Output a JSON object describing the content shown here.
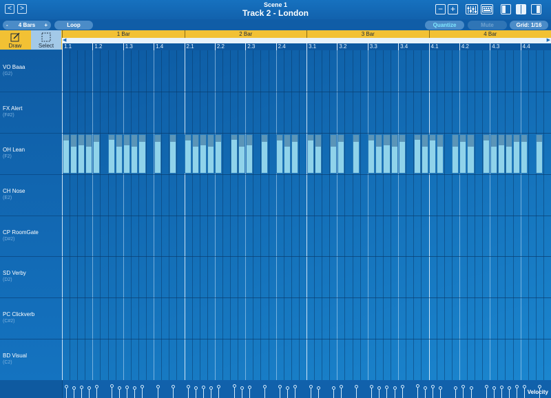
{
  "header": {
    "scene_title": "Scene 1",
    "track_title": "Track 2 - London",
    "back_glyph": "<",
    "forward_glyph": ">",
    "zoom_out_glyph": "−",
    "zoom_in_glyph": "+"
  },
  "toolbar": {
    "bars_minus": "-",
    "bars_value": "4 Bars",
    "bars_plus": "+",
    "loop_label": "Loop",
    "quantize_label": "Quantize",
    "mute_label": "Mute",
    "grid_label": "Grid: 1/16"
  },
  "tools": {
    "draw_label": "Draw",
    "select_label": "Select"
  },
  "ruler": {
    "bars": [
      "1 Bar",
      "2 Bar",
      "3 Bar",
      "4 Bar"
    ],
    "beats": [
      "1.1",
      "1.2",
      "1.3",
      "1.4",
      "2.1",
      "2.2",
      "2.3",
      "2.4",
      "3.1",
      "3.2",
      "3.3",
      "3.4",
      "4.1",
      "4.2",
      "4.3",
      "4.4"
    ]
  },
  "lanes": [
    {
      "name": "VO Baaa",
      "note": "(G2)"
    },
    {
      "name": "FX Alert",
      "note": "(F#2)"
    },
    {
      "name": "OH Lean",
      "note": "(F2)"
    },
    {
      "name": "CH Nose",
      "note": "(E2)"
    },
    {
      "name": "CP RoomGate",
      "note": "(D#2)"
    },
    {
      "name": "SD Verby",
      "note": "(D2)"
    },
    {
      "name": "PC Clickverb",
      "note": "(C#2)"
    },
    {
      "name": "BD Visual",
      "note": "(C2)"
    }
  ],
  "pattern": {
    "lane": "OH Lean",
    "steps": [
      1,
      1,
      1,
      1,
      1,
      0,
      1,
      1,
      1,
      1,
      1,
      0,
      1,
      0,
      1,
      0,
      1,
      1,
      1,
      1,
      1,
      0,
      1,
      1,
      1,
      0,
      1,
      0,
      1,
      1,
      1,
      0,
      1,
      1,
      0,
      1,
      1,
      0,
      1,
      0,
      1,
      1,
      1,
      1,
      1,
      0,
      1,
      1,
      1,
      1,
      0,
      1,
      1,
      1,
      0,
      1,
      1,
      1,
      1,
      1,
      1,
      0,
      1,
      0
    ],
    "velocities": [
      0.82,
      0.66,
      0.7,
      0.66,
      0.79,
      0,
      0.83,
      0.66,
      0.7,
      0.66,
      0.79,
      0,
      0.79,
      0,
      0.79,
      0,
      0.82,
      0.66,
      0.7,
      0.66,
      0.79,
      0,
      0.83,
      0.66,
      0.7,
      0,
      0.79,
      0,
      0.82,
      0.66,
      0.79,
      0,
      0.82,
      0.66,
      0,
      0.66,
      0.79,
      0,
      0.79,
      0,
      0.82,
      0.66,
      0.7,
      0.66,
      0.79,
      0,
      0.83,
      0.66,
      0.82,
      0.66,
      0,
      0.66,
      0.79,
      0.66,
      0,
      0.82,
      0.66,
      0.7,
      0.66,
      0.79,
      0.79,
      0,
      0.79,
      0
    ]
  },
  "velocity_label": "Velocity",
  "colors": {
    "accent_yellow": "#f2c134",
    "note_top": "#5b95b8",
    "note_bottom": "#90d3ea",
    "background": "#0e5fa8"
  }
}
